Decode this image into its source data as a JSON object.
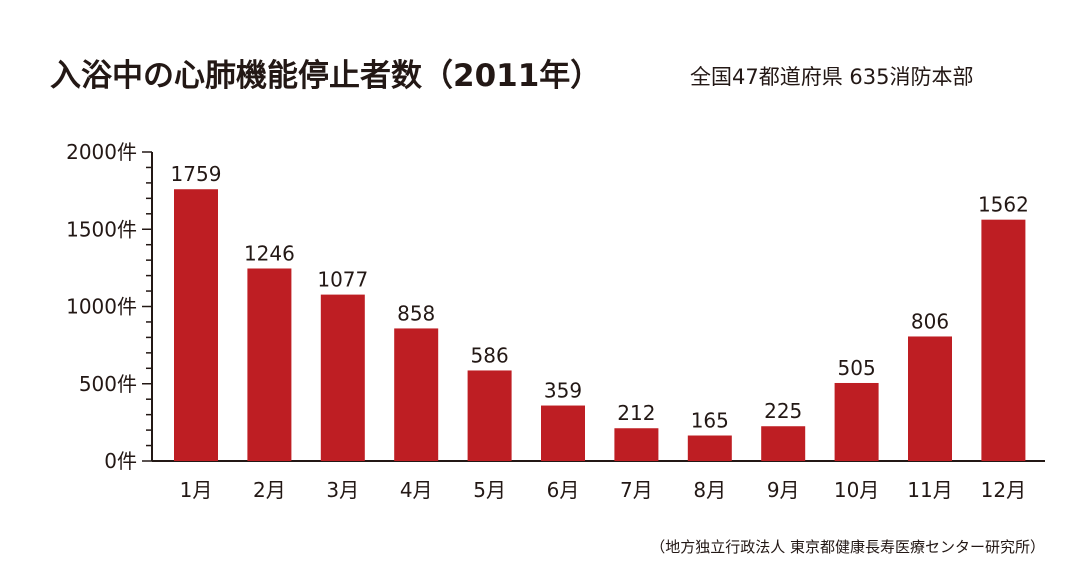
{
  "chart_data": {
    "type": "bar",
    "title": "入浴中の心肺機能停止者数（2011年）",
    "subtitle": "全国47都道府県 635消防本部",
    "source": "（地方独立行政法人 東京都健康長寿医療センター研究所）",
    "categories": [
      "1月",
      "2月",
      "3月",
      "4月",
      "5月",
      "6月",
      "7月",
      "8月",
      "9月",
      "10月",
      "11月",
      "12月"
    ],
    "values": [
      1759,
      1246,
      1077,
      858,
      586,
      359,
      212,
      165,
      225,
      505,
      806,
      1562
    ],
    "ylim": [
      0,
      2000
    ],
    "yticks": [
      0,
      500,
      1000,
      1500,
      2000
    ],
    "ytick_labels": [
      "0件",
      "500件",
      "1000件",
      "1500件",
      "2000件"
    ],
    "minor_tick_step": 100,
    "grid": false,
    "data_labels": true,
    "colors": {
      "bar": "#be1e23",
      "text": "#231815",
      "axis": "#231815"
    }
  }
}
